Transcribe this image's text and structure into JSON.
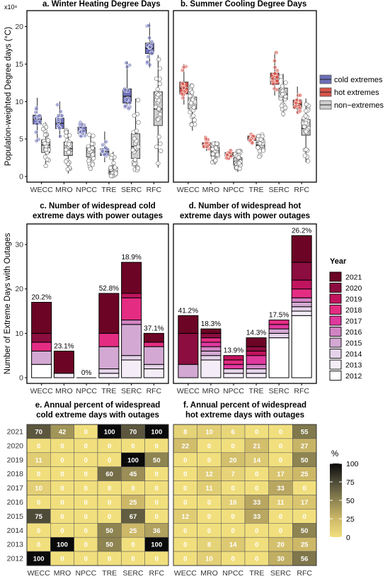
{
  "chart_data": [
    {
      "panel": "a",
      "type": "box",
      "title": "a.  Winter Heating Degree Days",
      "ylabel": "Population-weighted Degree days (°C)",
      "y_multiplier": "x10⁸",
      "ylim": [
        0,
        21
      ],
      "yticks": [
        "0",
        "5",
        "10",
        "15",
        "20"
      ],
      "categories": [
        "WECC",
        "MRO",
        "NPCC",
        "TRE",
        "SERC",
        "RFC"
      ],
      "series": [
        {
          "name": "cold extremes",
          "color": "#6C6FB7",
          "boxes": [
            {
              "min": 4.7,
              "q1": 7.0,
              "median": 7.6,
              "q3": 8.2,
              "max": 10.5
            },
            {
              "min": 5.2,
              "q1": 6.4,
              "median": 7.1,
              "q3": 7.8,
              "max": 10.0
            },
            {
              "min": 5.3,
              "q1": 5.7,
              "median": 6.1,
              "q3": 6.6,
              "max": 7.3
            },
            {
              "min": 1.9,
              "q1": 2.8,
              "median": 3.3,
              "q3": 3.7,
              "max": 6.0
            },
            {
              "min": 9.0,
              "q1": 9.8,
              "median": 10.7,
              "q3": 11.7,
              "max": 15.4
            },
            {
              "min": 14.5,
              "q1": 16.4,
              "median": 17.1,
              "q3": 17.8,
              "max": 20.5
            }
          ]
        },
        {
          "name": "non−extremes",
          "color": "#CFCFCF",
          "boxes": [
            {
              "min": 1.3,
              "q1": 3.2,
              "median": 4.2,
              "q3": 4.9,
              "max": 7.2
            },
            {
              "min": 0.4,
              "q1": 2.8,
              "median": 3.7,
              "q3": 4.6,
              "max": 6.2
            },
            {
              "min": 0.9,
              "q1": 2.6,
              "median": 3.3,
              "q3": 3.9,
              "max": 5.6
            },
            {
              "min": 0.0,
              "q1": 0.3,
              "median": 0.6,
              "q3": 1.2,
              "max": 3.3
            },
            {
              "min": 0.7,
              "q1": 2.4,
              "median": 4.0,
              "q3": 5.7,
              "max": 10.4
            },
            {
              "min": 1.2,
              "q1": 6.8,
              "median": 9.0,
              "q3": 11.3,
              "max": 16.2
            }
          ]
        }
      ]
    },
    {
      "panel": "b",
      "type": "box",
      "title": "b.  Summer Cooling Degree Days",
      "ylim": [
        0,
        21
      ],
      "categories": [
        "WECC",
        "MRO",
        "NPCC",
        "TRE",
        "SERC",
        "RFC"
      ],
      "legend": [
        "cold extremes",
        "hot extremes",
        "non−extremes"
      ],
      "series": [
        {
          "name": "hot extremes",
          "color": "#D9534A",
          "boxes": [
            {
              "min": 9.6,
              "q1": 11.0,
              "median": 11.8,
              "q3": 12.6,
              "max": 15.0
            },
            {
              "min": 3.4,
              "q1": 3.9,
              "median": 4.2,
              "q3": 4.5,
              "max": 5.3
            },
            {
              "min": 2.4,
              "q1": 2.7,
              "median": 2.9,
              "q3": 3.2,
              "max": 3.6
            },
            {
              "min": 4.4,
              "q1": 4.8,
              "median": 5.1,
              "q3": 5.4,
              "max": 5.8
            },
            {
              "min": 10.8,
              "q1": 12.3,
              "median": 13.0,
              "q3": 13.8,
              "max": 16.7
            },
            {
              "min": 8.4,
              "q1": 9.1,
              "median": 9.6,
              "q3": 10.2,
              "max": 12.0
            }
          ]
        },
        {
          "name": "non−extremes",
          "color": "#CFCFCF",
          "boxes": [
            {
              "min": 6.1,
              "q1": 9.0,
              "median": 9.9,
              "q3": 10.6,
              "max": 12.2
            },
            {
              "min": 1.6,
              "q1": 2.7,
              "median": 3.3,
              "q3": 3.9,
              "max": 4.7
            },
            {
              "min": 0.6,
              "q1": 1.5,
              "median": 2.0,
              "q3": 2.5,
              "max": 3.4
            },
            {
              "min": 2.5,
              "q1": 3.8,
              "median": 4.2,
              "q3": 4.6,
              "max": 5.6
            },
            {
              "min": 8.0,
              "q1": 10.3,
              "median": 11.0,
              "q3": 11.8,
              "max": 13.7
            },
            {
              "min": 1.9,
              "q1": 5.5,
              "median": 6.4,
              "q3": 7.6,
              "max": 10.4
            }
          ]
        }
      ]
    },
    {
      "panel": "c",
      "type": "bar",
      "stacked": true,
      "title": [
        "c.  Number of widespread cold",
        "extreme days with power outages"
      ],
      "ylabel": "Number of Extreme Days with Outages",
      "ylim": [
        0,
        34
      ],
      "yticks": [
        "0",
        "10",
        "20",
        "30"
      ],
      "categories": [
        "WECC",
        "MRO",
        "NPCC",
        "TRE",
        "SERC",
        "RFC"
      ],
      "bar_labels": [
        "20.2%",
        "23.1%",
        "0%",
        "52.8%",
        "18.9%",
        "37.1%"
      ],
      "years": [
        "2012",
        "2013",
        "2014",
        "2015",
        "2016",
        "2017",
        "2018",
        "2019",
        "2020",
        "2021"
      ],
      "stacks": [
        [
          3,
          0,
          0,
          3,
          0,
          0,
          2,
          0,
          2,
          7
        ],
        [
          0,
          1,
          0,
          0,
          0,
          0,
          0,
          0,
          0,
          5
        ],
        [
          0,
          0,
          0,
          0,
          0,
          0,
          0,
          0,
          0,
          0
        ],
        [
          0,
          1,
          1,
          5,
          0,
          0,
          3,
          0,
          0,
          9
        ],
        [
          0,
          4,
          1,
          7,
          1,
          0,
          5,
          1,
          0,
          7
        ],
        [
          0,
          2,
          1,
          4,
          0,
          0,
          1,
          0,
          0,
          2
        ]
      ]
    },
    {
      "panel": "d",
      "type": "bar",
      "stacked": true,
      "title": [
        "d.  Number of widespread hot",
        "extreme days with power outages"
      ],
      "ylim": [
        0,
        34
      ],
      "categories": [
        "WECC",
        "MRO",
        "NPCC",
        "TRE",
        "SERC",
        "RFC"
      ],
      "bar_labels": [
        "41.2%",
        "18.3%",
        "13.9%",
        "14.3%",
        "17.5%",
        "26.2%"
      ],
      "years": [
        "2012",
        "2013",
        "2014",
        "2015",
        "2016",
        "2017",
        "2018",
        "2019",
        "2020",
        "2021"
      ],
      "legend_title": "Year",
      "legend": [
        "2021",
        "2020",
        "2019",
        "2018",
        "2017",
        "2016",
        "2015",
        "2014",
        "2013",
        "2012"
      ],
      "colors": {
        "2012": "#FFFFFF",
        "2013": "#F4EDF7",
        "2014": "#E4D3EA",
        "2015": "#D3A9D3",
        "2016": "#D184C4",
        "2017": "#E0399E",
        "2018": "#E42C83",
        "2019": "#C0145E",
        "2020": "#8C0D3F",
        "2021": "#6C0425"
      },
      "stacks": [
        [
          0,
          0,
          0,
          3,
          0,
          0,
          0,
          0,
          7,
          4
        ],
        [
          0,
          4,
          1,
          1,
          1,
          1,
          1,
          0,
          1,
          1
        ],
        [
          0,
          1,
          1,
          0,
          0,
          1,
          1,
          1,
          0,
          0
        ],
        [
          0,
          1,
          1,
          0,
          1,
          2,
          0,
          1,
          1,
          2
        ],
        [
          9,
          0,
          1,
          1,
          0,
          1,
          1,
          0,
          0,
          0
        ],
        [
          14,
          1,
          1,
          1,
          1,
          0,
          2,
          2,
          4,
          6
        ]
      ]
    },
    {
      "panel": "e",
      "type": "heatmap",
      "title": [
        "e.  Annual percent of widespread",
        "cold extreme days with outages"
      ],
      "x": [
        "WECC",
        "MRO",
        "NPCC",
        "TRE",
        "SERC",
        "RFC"
      ],
      "y": [
        "2021",
        "2020",
        "2019",
        "2018",
        "2017",
        "2016",
        "2015",
        "2014",
        "2013",
        "2012"
      ],
      "values": [
        [
          70,
          42,
          0,
          100,
          70,
          100
        ],
        [
          0,
          0,
          0,
          0,
          0,
          0
        ],
        [
          11,
          0,
          0,
          0,
          100,
          50
        ],
        [
          0,
          0,
          0,
          60,
          45,
          0
        ],
        [
          10,
          0,
          0,
          0,
          0,
          0
        ],
        [
          0,
          0,
          0,
          0,
          25,
          0
        ],
        [
          75,
          0,
          0,
          0,
          67,
          0
        ],
        [
          0,
          0,
          0,
          50,
          25,
          36
        ],
        [
          0,
          100,
          0,
          50,
          0,
          100
        ],
        [
          100,
          0,
          0,
          0,
          0,
          0
        ]
      ]
    },
    {
      "panel": "f",
      "type": "heatmap",
      "title": [
        "f.  Annual percent of widespread",
        "hot extreme days with outages"
      ],
      "x": [
        "WECC",
        "MRO",
        "NPCC",
        "TRE",
        "SERC",
        "RFC"
      ],
      "y": [
        "2021",
        "2020",
        "2019",
        "2018",
        "2017",
        "2016",
        "2015",
        "2014",
        "2013",
        "2012"
      ],
      "values": [
        [
          8,
          10,
          6,
          0,
          0,
          55
        ],
        [
          22,
          0,
          0,
          21,
          0,
          27
        ],
        [
          0,
          0,
          20,
          14,
          0,
          50
        ],
        [
          0,
          12,
          7,
          0,
          17,
          25
        ],
        [
          0,
          11,
          0,
          0,
          33,
          0
        ],
        [
          0,
          0,
          10,
          33,
          11,
          17
        ],
        [
          12,
          0,
          0,
          33,
          0,
          0
        ],
        [
          0,
          0,
          0,
          0,
          0,
          50
        ],
        [
          0,
          8,
          14,
          0,
          20,
          25
        ],
        [
          0,
          10,
          0,
          0,
          30,
          56
        ]
      ],
      "colorbar_title": "%",
      "colorbar_ticks": [
        "100",
        "75",
        "50",
        "25",
        "0"
      ],
      "colorbar_range": [
        0,
        100
      ],
      "colorscale": [
        "#F1DF7E",
        "#CDB868",
        "#8E8451",
        "#4E4B38",
        "#0A0A0A"
      ]
    }
  ]
}
